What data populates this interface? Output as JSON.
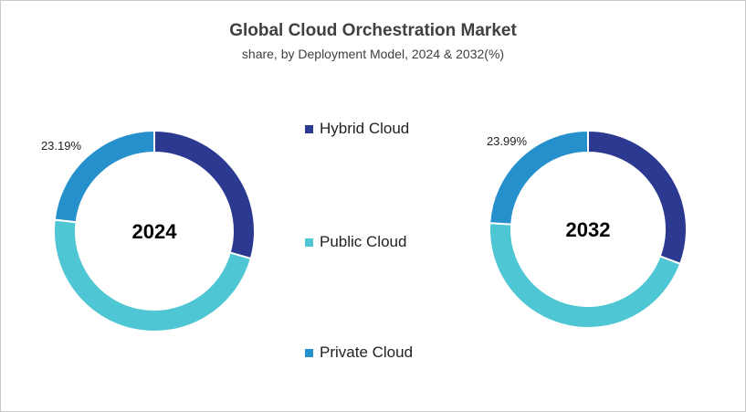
{
  "chart_data": [
    {
      "type": "pie",
      "donut": true,
      "title": "Global Cloud Orchestration Market",
      "subtitle": "share, by Deployment Model, 2024 & 2032(%)",
      "center_label": "2024",
      "categories": [
        "Hybrid Cloud",
        "Public Cloud",
        "Private Cloud"
      ],
      "values": [
        29.4,
        47.41,
        23.19
      ],
      "data_labels": {
        "Private Cloud": "23.19%"
      }
    },
    {
      "type": "pie",
      "donut": true,
      "center_label": "2032",
      "categories": [
        "Hybrid Cloud",
        "Public Cloud",
        "Private Cloud"
      ],
      "values": [
        30.7,
        45.31,
        23.99
      ],
      "data_labels": {
        "Private Cloud": "23.99%"
      }
    }
  ],
  "legend": {
    "placement": "center",
    "items": [
      {
        "label": "Hybrid Cloud",
        "color": "#2B3990"
      },
      {
        "label": "Public Cloud",
        "color": "#4FC6D3"
      },
      {
        "label": "Private Cloud",
        "color": "#2690CC"
      }
    ]
  },
  "labels": {
    "left_private": "23.19%",
    "right_private": "23.99%"
  }
}
